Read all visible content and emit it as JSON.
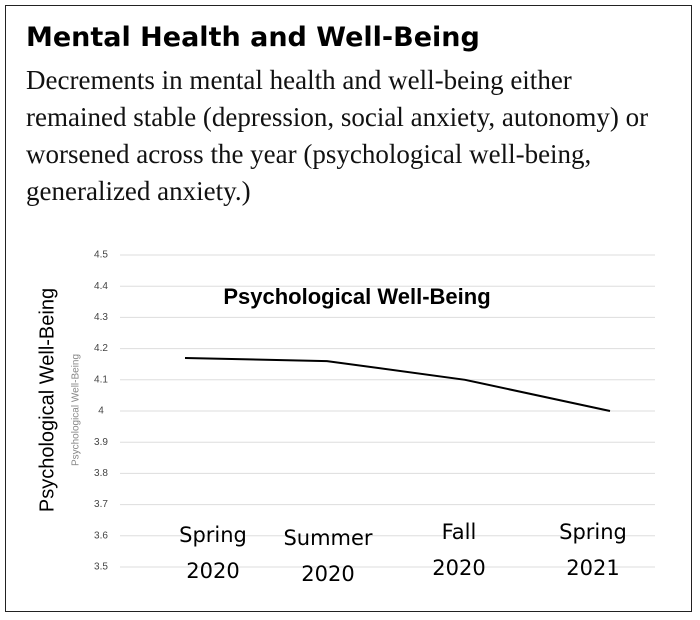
{
  "header": {
    "title": "Mental Health and Well-Being",
    "text": "Decrements in mental health and well-being either remained stable (depression, social anxiety, autonomy) or worsened across the year (psychological well-being, generalized anxiety.)"
  },
  "chart_data": {
    "type": "line",
    "title": "Psychological Well-Being",
    "ylabel": "Psychological Well-Being",
    "ylabel_inner": "Psychological Well-Being",
    "categories": [
      "Spring 2020",
      "Summer 2020",
      "Fall 2020",
      "Spring 2021"
    ],
    "values": [
      4.17,
      4.16,
      4.1,
      4.0
    ],
    "color": "#000000",
    "ylim": [
      3.5,
      4.5
    ],
    "yticks": [
      3.5,
      3.6,
      3.7,
      3.8,
      3.9,
      4,
      4.1,
      4.2,
      4.3,
      4.4,
      4.5
    ],
    "grid": true
  }
}
